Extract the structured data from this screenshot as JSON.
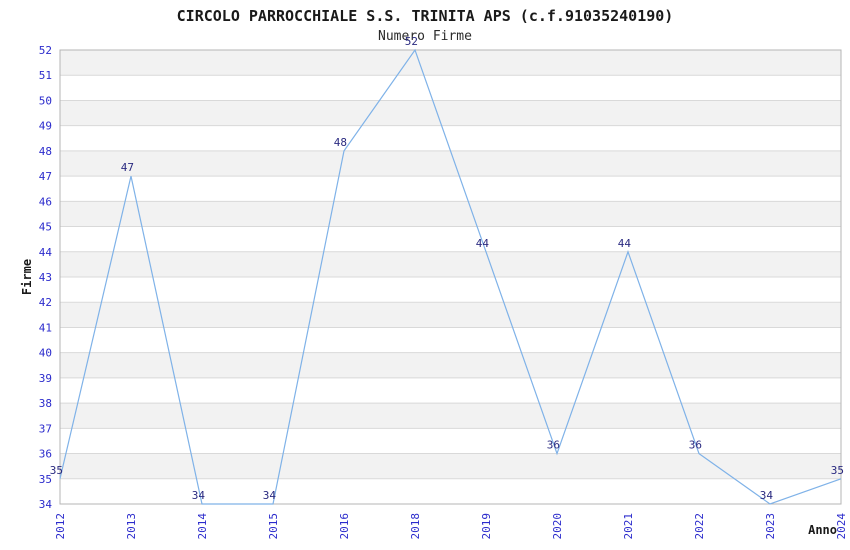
{
  "chart_data": {
    "type": "line",
    "title": "CIRCOLO PARROCCHIALE S.S. TRINITA APS (c.f.91035240190)",
    "subtitle": "Numero Firme",
    "xlabel": "Anno",
    "ylabel": "Firme",
    "categories": [
      "2012",
      "2013",
      "2014",
      "2015",
      "2016",
      "2018",
      "2019",
      "2020",
      "2021",
      "2022",
      "2023",
      "2024"
    ],
    "series": [
      {
        "name": "Numero Firme",
        "values": [
          35,
          47,
          34,
          34,
          48,
          52,
          44,
          36,
          44,
          36,
          34,
          35
        ]
      }
    ],
    "ylim": [
      34,
      52
    ],
    "ytick_step": 1,
    "grid": "horizontal-bands-alternating",
    "vertical_gridlines": false,
    "point_markers": false,
    "data_labels_visible": true,
    "x_tick_rotation_deg": -90,
    "legend_position": "none",
    "colors": {
      "line": "#7fb2e8",
      "band": "#f2f2f2",
      "gridline": "#d9d9d9",
      "frame": "#b5b5b5",
      "tick_label": "#2b2bcc",
      "data_label": "#2a2a80",
      "title": "#1a1a1a",
      "background": "#ffffff"
    }
  }
}
